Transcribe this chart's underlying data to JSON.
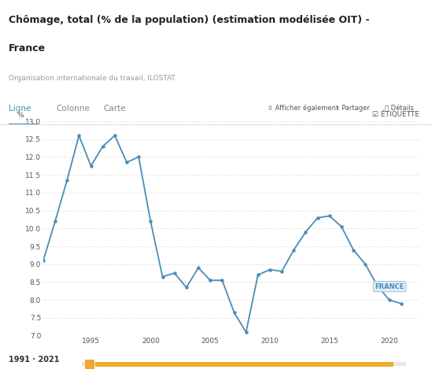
{
  "title_line1": "Chômage, total (% de la population) (estimation modélisée OIT) -",
  "title_line2": "France",
  "source": "Organisation internationale du travail, ILOSTAT.",
  "ylabel": "%",
  "xlabel_range": "1991 · 2021",
  "line_color": "#4a8db5",
  "marker_color": "#4a8db5",
  "background_color": "#ffffff",
  "grid_color": "#d8d8d8",
  "years": [
    1991,
    1992,
    1993,
    1994,
    1995,
    1996,
    1997,
    1998,
    1999,
    2000,
    2001,
    2002,
    2003,
    2004,
    2005,
    2006,
    2007,
    2008,
    2009,
    2010,
    2011,
    2012,
    2013,
    2014,
    2015,
    2016,
    2017,
    2018,
    2019,
    2020,
    2021
  ],
  "values": [
    9.1,
    10.2,
    11.35,
    12.6,
    11.75,
    12.3,
    12.6,
    11.85,
    12.0,
    10.2,
    8.65,
    8.75,
    8.35,
    8.9,
    8.55,
    8.55,
    7.65,
    7.1,
    8.7,
    8.85,
    8.8,
    9.4,
    9.9,
    10.3,
    10.35,
    10.05,
    9.4,
    9.0,
    8.4,
    8.0,
    7.9
  ],
  "ylim": [
    7.0,
    13.0
  ],
  "yticks": [
    7.0,
    7.5,
    8.0,
    8.5,
    9.0,
    9.5,
    10.0,
    10.5,
    11.0,
    11.5,
    12.0,
    12.5,
    13.0
  ],
  "xticks": [
    1995,
    2000,
    2005,
    2010,
    2015,
    2020
  ],
  "label_text": "FRANCE",
  "label_year": 2021,
  "label_value": 7.9,
  "tab_active": "Ligne",
  "tab_inactive": [
    "Colonne",
    "Carte"
  ],
  "nav_items": [
    "Afficher également",
    "Partager",
    "Détails"
  ],
  "etiquette_text": "ÉTIQUETTE"
}
